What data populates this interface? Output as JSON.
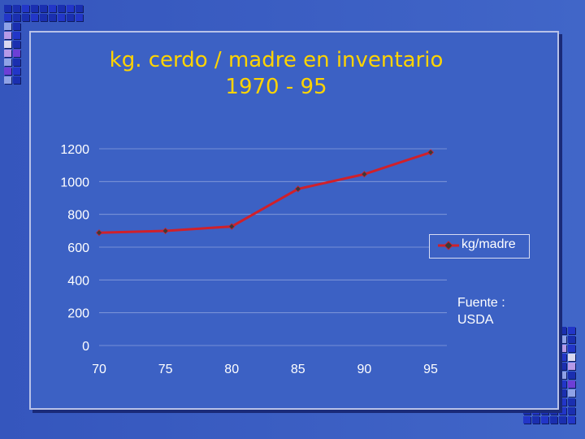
{
  "slide": {
    "title_line1": "kg. cerdo / madre en inventario",
    "title_line2": "1970 - 95",
    "source_line1": "Fuente :",
    "source_line2": "USDA"
  },
  "colors": {
    "background": "#3b5bc1",
    "title": "#ffd400",
    "series_line": "#d0202a",
    "axis_text": "#ffffff"
  },
  "chart_data": {
    "type": "line",
    "title": "kg. cerdo / madre en inventario 1970 - 95",
    "x": [
      70,
      75,
      80,
      85,
      90,
      95
    ],
    "x_tick_labels": [
      "70",
      "75",
      "80",
      "85",
      "90",
      "95"
    ],
    "series": [
      {
        "name": "kg/madre",
        "values": [
          688,
          699,
          726,
          955,
          1045,
          1178
        ]
      }
    ],
    "y_tick_labels": [
      "0",
      "200",
      "400",
      "600",
      "800",
      "1000",
      "1200"
    ],
    "y_ticks": [
      0,
      200,
      400,
      600,
      800,
      1000,
      1200
    ],
    "ylim": [
      0,
      1200
    ],
    "grid": true,
    "legend_placement": "right"
  }
}
